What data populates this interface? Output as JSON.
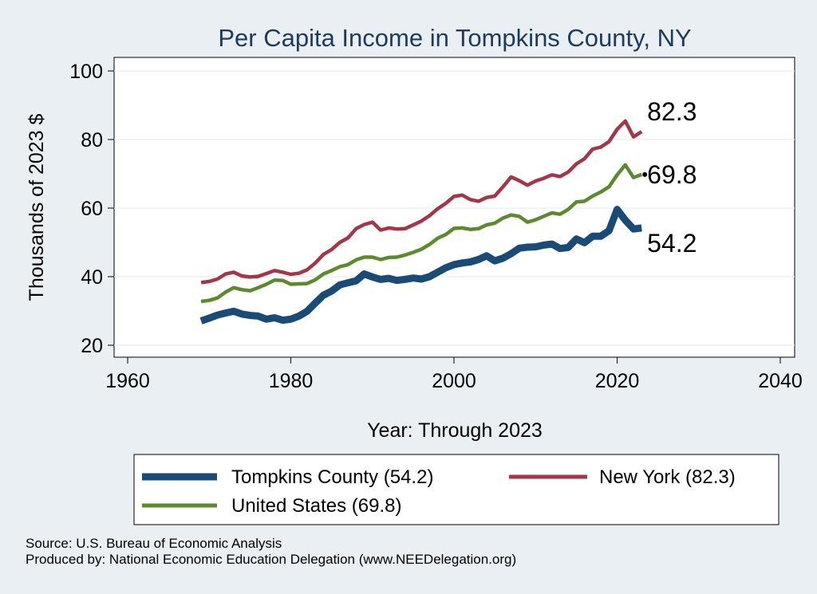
{
  "chart_data": {
    "type": "line",
    "title": "Per Capita Income in Tompkins County, NY",
    "xlabel": "Year: Through 2023",
    "ylabel": "Thousands of 2023 $",
    "xlim": [
      1960,
      2040
    ],
    "ylim": [
      20,
      100
    ],
    "xticks": [
      1960,
      1980,
      2000,
      2020,
      2040
    ],
    "yticks": [
      20,
      40,
      60,
      80,
      100
    ],
    "grid": "horizontal",
    "x": [
      1969,
      1970,
      1971,
      1972,
      1973,
      1974,
      1975,
      1976,
      1977,
      1978,
      1979,
      1980,
      1981,
      1982,
      1983,
      1984,
      1985,
      1986,
      1987,
      1988,
      1989,
      1990,
      1991,
      1992,
      1993,
      1994,
      1995,
      1996,
      1997,
      1998,
      1999,
      2000,
      2001,
      2002,
      2003,
      2004,
      2005,
      2006,
      2007,
      2008,
      2009,
      2010,
      2011,
      2012,
      2013,
      2014,
      2015,
      2016,
      2017,
      2018,
      2019,
      2020,
      2021,
      2022,
      2023
    ],
    "series": [
      {
        "name": "New York",
        "legend": "New York (82.3)",
        "color": "#a3364a",
        "end_label": "82.3",
        "values": [
          38.3,
          38.6,
          39.3,
          40.8,
          41.3,
          40.2,
          39.9,
          40.1,
          40.9,
          41.8,
          41.3,
          40.7,
          41.0,
          42.0,
          44.0,
          46.5,
          47.9,
          50.0,
          51.3,
          54.0,
          55.2,
          55.9,
          53.6,
          54.2,
          53.9,
          54.0,
          55.1,
          56.2,
          57.8,
          59.8,
          61.4,
          63.4,
          63.8,
          62.5,
          62.0,
          63.1,
          63.5,
          66.2,
          69.1,
          68.0,
          66.7,
          67.9,
          68.7,
          69.7,
          69.2,
          70.5,
          72.9,
          74.4,
          77.2,
          77.8,
          79.4,
          83.0,
          85.4,
          80.8,
          82.3
        ]
      },
      {
        "name": "United States",
        "legend": "United States (69.8)",
        "color": "#5d8a2e",
        "end_label": "69.8",
        "values": [
          32.8,
          33.1,
          33.8,
          35.5,
          36.8,
          36.2,
          35.9,
          36.8,
          37.8,
          39.0,
          38.9,
          37.8,
          37.9,
          38.0,
          39.1,
          40.8,
          41.8,
          42.9,
          43.5,
          44.9,
          45.7,
          45.7,
          45.0,
          45.6,
          45.7,
          46.3,
          47.1,
          48.0,
          49.4,
          51.2,
          52.3,
          54.1,
          54.2,
          53.8,
          54.0,
          55.1,
          55.6,
          57.1,
          58.0,
          57.6,
          55.9,
          56.6,
          57.6,
          58.6,
          58.2,
          59.6,
          61.8,
          62.0,
          63.5,
          64.7,
          66.2,
          69.7,
          72.6,
          68.9,
          69.8
        ]
      },
      {
        "name": "Tompkins County",
        "legend": "Tompkins County (54.2)",
        "color": "#1a4a76",
        "end_label": "54.2",
        "values": [
          27.1,
          27.9,
          28.8,
          29.4,
          29.9,
          29.1,
          28.7,
          28.5,
          27.6,
          28.0,
          27.3,
          27.6,
          28.5,
          29.9,
          32.3,
          34.6,
          35.8,
          37.6,
          38.2,
          38.8,
          40.8,
          39.9,
          39.2,
          39.5,
          38.9,
          39.2,
          39.6,
          39.3,
          40.0,
          41.3,
          42.6,
          43.5,
          44.0,
          44.3,
          45.0,
          46.1,
          44.6,
          45.4,
          46.7,
          48.3,
          48.6,
          48.7,
          49.2,
          49.5,
          48.2,
          48.5,
          51.0,
          49.9,
          51.8,
          51.8,
          53.4,
          59.6,
          56.5,
          53.9,
          54.2
        ]
      }
    ]
  },
  "legend": {
    "items": [
      "Tompkins County (54.2)",
      "New York (82.3)",
      "United States (69.8)"
    ]
  },
  "source": {
    "line1": "Source: U.S. Bureau of Economic Analysis",
    "line2": "Produced by: National Economic Education Delegation (www.NEEDelegation.org)"
  }
}
